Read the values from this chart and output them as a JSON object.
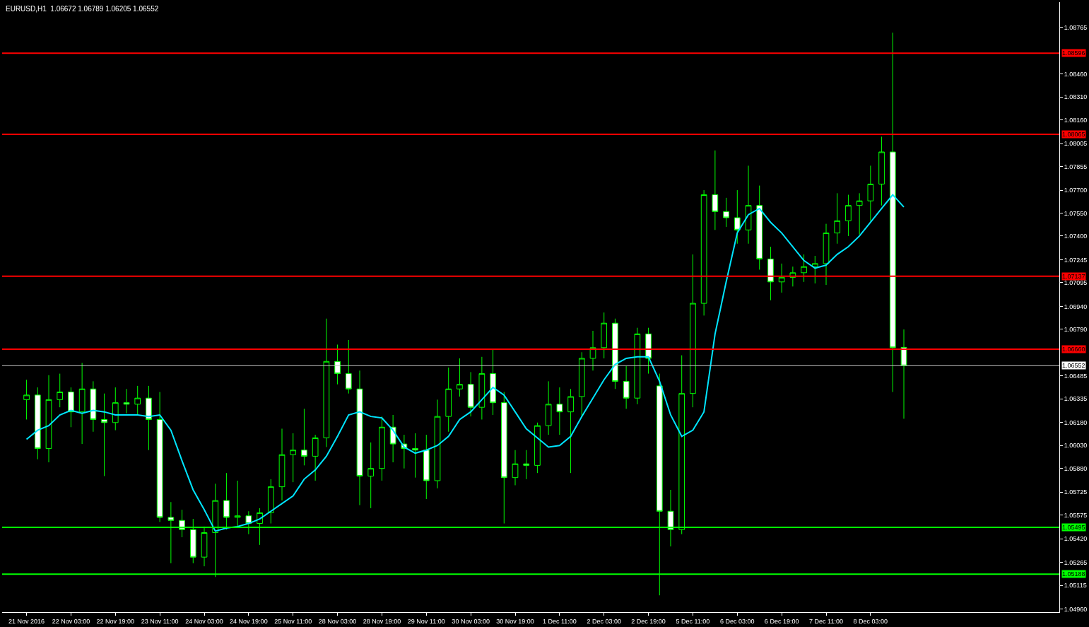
{
  "chart_data": {
    "type": "candlestick",
    "title": "EURUSD,H1  1.06672 1.06789 1.06205 1.06552",
    "categories": [
      "21 Nov 2016",
      null,
      null,
      null,
      "22 Nov 03:00",
      null,
      null,
      null,
      "22 Nov 19:00",
      null,
      null,
      null,
      "23 Nov 11:00",
      null,
      null,
      null,
      "24 Nov 03:00",
      null,
      null,
      null,
      "24 Nov 19:00",
      null,
      null,
      null,
      "25 Nov 11:00",
      null,
      null,
      null,
      "28 Nov 03:00",
      null,
      null,
      null,
      "28 Nov 19:00",
      null,
      null,
      null,
      "29 Nov 11:00",
      null,
      null,
      null,
      "30 Nov 03:00",
      null,
      null,
      null,
      "30 Nov 19:00",
      null,
      null,
      null,
      "1 Dec 11:00",
      null,
      null,
      null,
      "2 Dec 03:00",
      null,
      null,
      null,
      "2 Dec 19:00",
      null,
      null,
      null,
      "5 Dec 11:00",
      null,
      null,
      null,
      "6 Dec 03:00",
      null,
      null,
      null,
      "6 Dec 19:00",
      null,
      null,
      null,
      "7 Dec 11:00",
      null,
      null,
      null,
      "8 Dec 03:00",
      null,
      null,
      null
    ],
    "ohlc": [
      [
        1.0633,
        1.0646,
        1.062,
        1.0636
      ],
      [
        1.0636,
        1.0641,
        1.0594,
        1.0601
      ],
      [
        1.0601,
        1.0649,
        1.0592,
        1.0633
      ],
      [
        1.0633,
        1.065,
        1.0628,
        1.0638
      ],
      [
        1.0638,
        1.0641,
        1.0615,
        1.0625
      ],
      [
        1.0625,
        1.0657,
        1.0604,
        1.064
      ],
      [
        1.064,
        1.0645,
        1.0612,
        1.062
      ],
      [
        1.062,
        1.0637,
        1.0583,
        1.0618
      ],
      [
        1.0618,
        1.0641,
        1.0613,
        1.0631
      ],
      [
        1.0631,
        1.064,
        1.0624,
        1.063
      ],
      [
        1.063,
        1.0642,
        1.0623,
        1.0634
      ],
      [
        1.0634,
        1.0642,
        1.06,
        1.062
      ],
      [
        1.062,
        1.0638,
        1.0553,
        1.0556
      ],
      [
        1.0556,
        1.0566,
        1.0526,
        1.0554
      ],
      [
        1.0554,
        1.0561,
        1.0543,
        1.0548
      ],
      [
        1.0548,
        1.0555,
        1.0526,
        1.053
      ],
      [
        1.053,
        1.055,
        1.0524,
        1.0546
      ],
      [
        1.0546,
        1.0578,
        1.0517,
        1.0567
      ],
      [
        1.0567,
        1.0585,
        1.0548,
        1.0556
      ],
      [
        1.0556,
        1.058,
        1.0549,
        1.0557
      ],
      [
        1.0557,
        1.056,
        1.0545,
        1.0552
      ],
      [
        1.0552,
        1.0562,
        1.0538,
        1.0559
      ],
      [
        1.0559,
        1.0581,
        1.0552,
        1.0576
      ],
      [
        1.0576,
        1.0614,
        1.0567,
        1.0597
      ],
      [
        1.0597,
        1.0611,
        1.0579,
        1.06
      ],
      [
        1.06,
        1.0627,
        1.059,
        1.0596
      ],
      [
        1.0596,
        1.061,
        1.058,
        1.0608
      ],
      [
        1.0608,
        1.0686,
        1.0602,
        1.0658
      ],
      [
        1.0658,
        1.0669,
        1.0643,
        1.065
      ],
      [
        1.065,
        1.0672,
        1.0637,
        1.064
      ],
      [
        1.064,
        1.0652,
        1.0564,
        1.0583
      ],
      [
        1.0583,
        1.0605,
        1.0562,
        1.0588
      ],
      [
        1.0588,
        1.0622,
        1.058,
        1.0615
      ],
      [
        1.0615,
        1.0623,
        1.0592,
        1.0604
      ],
      [
        1.0604,
        1.061,
        1.0588,
        1.0601
      ],
      [
        1.0601,
        1.0611,
        1.0582,
        1.06
      ],
      [
        1.06,
        1.061,
        1.0568,
        1.058
      ],
      [
        1.058,
        1.0633,
        1.0575,
        1.0622
      ],
      [
        1.0622,
        1.0654,
        1.0612,
        1.064
      ],
      [
        1.064,
        1.066,
        1.0635,
        1.0643
      ],
      [
        1.0643,
        1.0651,
        1.0622,
        1.0628
      ],
      [
        1.0628,
        1.0661,
        1.062,
        1.065
      ],
      [
        1.065,
        1.0666,
        1.0623,
        1.0631
      ],
      [
        1.0631,
        1.0638,
        1.0552,
        1.0582
      ],
      [
        1.0582,
        1.06,
        1.0577,
        1.0591
      ],
      [
        1.0591,
        1.06,
        1.0581,
        1.059
      ],
      [
        1.059,
        1.0618,
        1.0585,
        1.0616
      ],
      [
        1.0616,
        1.0645,
        1.061,
        1.063
      ],
      [
        1.063,
        1.0641,
        1.061,
        1.0625
      ],
      [
        1.0625,
        1.064,
        1.0585,
        1.0635
      ],
      [
        1.0635,
        1.0664,
        1.0622,
        1.066
      ],
      [
        1.066,
        1.0678,
        1.0652,
        1.0667
      ],
      [
        1.0667,
        1.069,
        1.066,
        1.0683
      ],
      [
        1.0683,
        1.0686,
        1.064,
        1.0645
      ],
      [
        1.0645,
        1.0655,
        1.0627,
        1.0634
      ],
      [
        1.0634,
        1.068,
        1.063,
        1.0676
      ],
      [
        1.0676,
        1.068,
        1.065,
        1.066
      ],
      [
        1.0642,
        1.065,
        1.0505,
        1.056
      ],
      [
        1.056,
        1.0574,
        1.0537,
        1.0548
      ],
      [
        1.0548,
        1.0662,
        1.0545,
        1.0637
      ],
      [
        1.0637,
        1.0728,
        1.0628,
        1.0696
      ],
      [
        1.0696,
        1.077,
        1.0688,
        1.0767
      ],
      [
        1.0767,
        1.0796,
        1.0744,
        1.0756
      ],
      [
        1.0756,
        1.0765,
        1.0746,
        1.0752
      ],
      [
        1.0752,
        1.077,
        1.0735,
        1.0744
      ],
      [
        1.0744,
        1.0786,
        1.0735,
        1.076
      ],
      [
        1.076,
        1.0773,
        1.0718,
        1.0725
      ],
      [
        1.0725,
        1.0733,
        1.0698,
        1.071
      ],
      [
        1.071,
        1.0722,
        1.0703,
        1.0713
      ],
      [
        1.0713,
        1.072,
        1.0707,
        1.0716
      ],
      [
        1.0716,
        1.0728,
        1.071,
        1.072
      ],
      [
        1.072,
        1.0727,
        1.0709,
        1.0722
      ],
      [
        1.0722,
        1.0748,
        1.0708,
        1.0742
      ],
      [
        1.0742,
        1.0768,
        1.0735,
        1.075
      ],
      [
        1.075,
        1.0767,
        1.074,
        1.076
      ],
      [
        1.076,
        1.0768,
        1.0741,
        1.0763
      ],
      [
        1.0763,
        1.0786,
        1.075,
        1.0774
      ],
      [
        1.0774,
        1.0805,
        1.076,
        1.0795
      ],
      [
        1.0795,
        1.0873,
        1.0638,
        1.0667
      ],
      [
        1.06672,
        1.06789,
        1.06205,
        1.06552
      ]
    ],
    "color": "#00ff00",
    "series": [
      {
        "type": "line",
        "color": "#00e5ff",
        "values": [
          1.0607,
          1.0613,
          1.0616,
          1.0623,
          1.0626,
          1.0624,
          1.0626,
          1.0625,
          1.0623,
          1.0623,
          1.0623,
          1.0622,
          1.0623,
          1.0613,
          1.0593,
          1.0574,
          1.0561,
          1.0547,
          1.0549,
          1.055,
          1.0552,
          1.0555,
          1.056,
          1.0565,
          1.057,
          1.0581,
          1.0587,
          1.0596,
          1.0609,
          1.0623,
          1.0625,
          1.0622,
          1.0621,
          1.0613,
          1.0602,
          1.0598,
          1.06,
          1.0603,
          1.0609,
          1.062,
          1.0625,
          1.0633,
          1.0641,
          1.0636,
          1.0625,
          1.0614,
          1.0608,
          1.0602,
          1.0603,
          1.0609,
          1.0622,
          1.0634,
          1.0646,
          1.0656,
          1.066,
          1.0661,
          1.0661,
          1.0645,
          1.0623,
          1.0609,
          1.0613,
          1.0625,
          1.0676,
          1.071,
          1.0742,
          1.0754,
          1.0758,
          1.0749,
          1.0742,
          1.0733,
          1.0724,
          1.0719,
          1.0721,
          1.0728,
          1.0733,
          1.074,
          1.0749,
          1.0758,
          1.0767,
          1.0759
        ]
      }
    ],
    "ylim": [
      1.0494,
      1.0893
    ],
    "yticks": [
      1.08765,
      {
        "value": 1.0846,
        "label": "1.08460"
      },
      {
        "value": 1.0831,
        "label": "1.08310"
      },
      {
        "value": 1.0816,
        "label": "1.08160"
      },
      1.08005,
      1.07855,
      {
        "value": 1.077,
        "label": "1.07700"
      },
      {
        "value": 1.0755,
        "label": "1.07550"
      },
      {
        "value": 1.074,
        "label": "1.07400"
      },
      1.07245,
      1.07095,
      {
        "value": 1.0694,
        "label": "1.06940"
      },
      {
        "value": 1.0679,
        "label": "1.06790"
      },
      1.06485,
      1.06335,
      {
        "value": 1.0618,
        "label": "1.06180"
      },
      {
        "value": 1.0603,
        "label": "1.06030"
      },
      {
        "value": 1.0588,
        "label": "1.05880"
      },
      1.05725,
      1.05575,
      {
        "value": 1.0542,
        "label": "1.05420"
      },
      1.05265,
      1.05115,
      {
        "value": 1.0496,
        "label": "1.04960"
      }
    ],
    "ref_lines": [
      {
        "axis": "y",
        "value": 1.08596,
        "label": "1.08596",
        "color": "#ff0000"
      },
      {
        "axis": "y",
        "value": 1.08065,
        "label": "1.08065",
        "color": "#ff0000"
      },
      {
        "axis": "y",
        "value": 1.07137,
        "label": "1.07137",
        "color": "#ff0000"
      },
      {
        "axis": "y",
        "value": 1.0666,
        "label": "1.06660",
        "color": "#ff0000"
      },
      {
        "axis": "y",
        "value": 1.06552,
        "label": "1.06552",
        "color": "#c0c0c0"
      },
      {
        "axis": "y",
        "value": 1.05495,
        "label": "1.05495",
        "color": "#00ff00"
      },
      {
        "axis": "y",
        "value": 1.05188,
        "label": "1.05188",
        "color": "#00ff00"
      }
    ],
    "grid": false
  }
}
